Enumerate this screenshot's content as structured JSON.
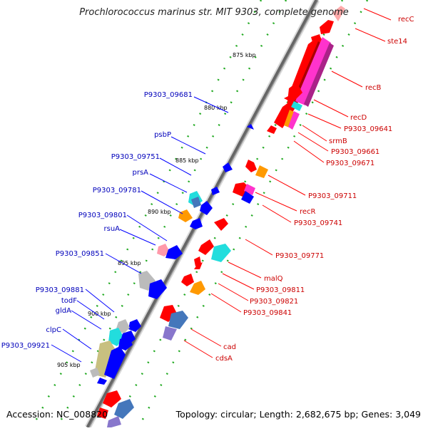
{
  "title": "Prochlorococcus marinus str. MIT 9303, complete genome",
  "footer": {
    "accession": "Accession: NC_008820",
    "summary": "Topology: circular; Length: 2,682,675 bp; Genes: 3,049"
  },
  "ticks": [
    "875 kbp",
    "880 kbp",
    "885 kbp",
    "890 kbp",
    "895 kbp",
    "900 kbp",
    "905 kbp"
  ],
  "labels_right": [
    "recC",
    "ste14",
    "recB",
    "recD",
    "P9303_09641",
    "srmB",
    "P9303_09661",
    "P9303_09671",
    "P9303_09711",
    "recR",
    "P9303_09741",
    "P9303_09771",
    "malQ",
    "P9303_09811",
    "P9303_09821",
    "P9303_09841",
    "cad",
    "cdsA"
  ],
  "labels_left": [
    "P9303_09681",
    "psbP",
    "P9303_09751",
    "prsA",
    "P9303_09781",
    "P9303_09801",
    "rsuA",
    "P9303_09851",
    "P9303_09881",
    "todF",
    "gldA",
    "clpC",
    "P9303_09921"
  ],
  "colors": {
    "forward_label": "#cc0000",
    "reverse_label": "#0000bb",
    "backbone": "#777777",
    "tick": "#22aa22",
    "forward_gene": "#ff0000",
    "reverse_gene": "#0000ff",
    "magenta_gene": "#ff33cc",
    "cyan_gene": "#22dddd",
    "orange_gene": "#ff9900",
    "grey_gene": "#bbbbbb",
    "khaki_gene": "#c8c080",
    "purple_gene": "#8877cc",
    "steel_gene": "#4477bb",
    "pink_gene": "#ff99aa"
  }
}
